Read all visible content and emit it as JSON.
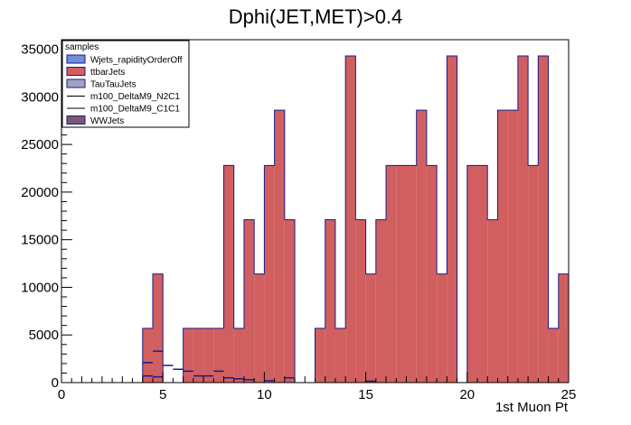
{
  "chart_data": {
    "type": "bar",
    "title": "Dphi(JET,MET)>0.4",
    "xlabel": "1st Muon Pt",
    "ylabel": "",
    "xlim": [
      0,
      25
    ],
    "ylim": [
      0,
      36000
    ],
    "x_ticks": [
      "0",
      "5",
      "10",
      "15",
      "20",
      "25"
    ],
    "y_ticks": [
      "0",
      "5000",
      "10000",
      "15000",
      "20000",
      "25000",
      "30000",
      "35000"
    ],
    "bin_width": 0.5,
    "legend_title": "samples",
    "legend_position": "top-left",
    "series": [
      {
        "name": "Wjets_rapidityOrderOff",
        "color": "#6f8fd8",
        "style": "fill"
      },
      {
        "name": "ttbarJets",
        "color": "#d15f5f",
        "style": "fill"
      },
      {
        "name": "TauTauJets",
        "color": "#a3a3c2",
        "style": "fill"
      },
      {
        "name": "m100_DeltaM9_N2C1",
        "color": "#000000",
        "style": "line"
      },
      {
        "name": "m100_DeltaM9_C1C1",
        "color": "#000000",
        "style": "line"
      },
      {
        "name": "WWJets",
        "color": "#7a5a6e",
        "style": "fill"
      }
    ],
    "stack_bins": [
      {
        "x": 4.0,
        "y": 5700
      },
      {
        "x": 4.5,
        "y": 11400
      },
      {
        "x": 6.0,
        "y": 5700
      },
      {
        "x": 6.5,
        "y": 5700
      },
      {
        "x": 7.0,
        "y": 5700
      },
      {
        "x": 7.5,
        "y": 5700
      },
      {
        "x": 8.0,
        "y": 22800
      },
      {
        "x": 8.5,
        "y": 5700
      },
      {
        "x": 9.0,
        "y": 17100
      },
      {
        "x": 9.5,
        "y": 11400
      },
      {
        "x": 10.0,
        "y": 22800
      },
      {
        "x": 10.5,
        "y": 28600
      },
      {
        "x": 11.0,
        "y": 17100
      },
      {
        "x": 12.5,
        "y": 5700
      },
      {
        "x": 13.0,
        "y": 17100
      },
      {
        "x": 13.5,
        "y": 5700
      },
      {
        "x": 14.0,
        "y": 34300
      },
      {
        "x": 14.5,
        "y": 17100
      },
      {
        "x": 15.0,
        "y": 11400
      },
      {
        "x": 15.5,
        "y": 17100
      },
      {
        "x": 16.0,
        "y": 22800
      },
      {
        "x": 16.5,
        "y": 22800
      },
      {
        "x": 17.0,
        "y": 22800
      },
      {
        "x": 17.5,
        "y": 28600
      },
      {
        "x": 18.0,
        "y": 22800
      },
      {
        "x": 18.5,
        "y": 11400
      },
      {
        "x": 19.0,
        "y": 34300
      },
      {
        "x": 20.0,
        "y": 22800
      },
      {
        "x": 20.5,
        "y": 22800
      },
      {
        "x": 21.0,
        "y": 17100
      },
      {
        "x": 21.5,
        "y": 28600
      },
      {
        "x": 22.0,
        "y": 28600
      },
      {
        "x": 22.5,
        "y": 34300
      },
      {
        "x": 23.0,
        "y": 22800
      },
      {
        "x": 23.5,
        "y": 34300
      },
      {
        "x": 24.0,
        "y": 5700
      },
      {
        "x": 24.5,
        "y": 11400
      }
    ],
    "signal_markers": [
      {
        "x": 4.0,
        "y": 2100
      },
      {
        "x": 4.5,
        "y": 3300
      },
      {
        "x": 4.0,
        "y": 700
      },
      {
        "x": 4.5,
        "y": 600
      },
      {
        "x": 5.0,
        "y": 1800
      },
      {
        "x": 5.5,
        "y": 1400
      },
      {
        "x": 6.0,
        "y": 1200
      },
      {
        "x": 6.5,
        "y": 700
      },
      {
        "x": 7.0,
        "y": 700
      },
      {
        "x": 7.5,
        "y": 1200
      },
      {
        "x": 8.0,
        "y": 500
      },
      {
        "x": 8.5,
        "y": 400
      },
      {
        "x": 9.0,
        "y": 300
      },
      {
        "x": 10.0,
        "y": 200
      },
      {
        "x": 11.0,
        "y": 500
      },
      {
        "x": 15.0,
        "y": 150
      }
    ]
  }
}
